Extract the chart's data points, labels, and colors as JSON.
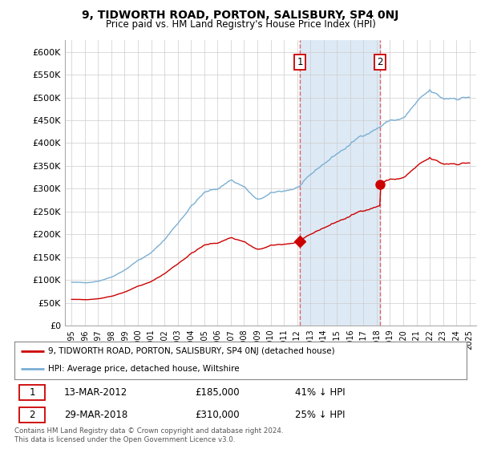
{
  "title": "9, TIDWORTH ROAD, PORTON, SALISBURY, SP4 0NJ",
  "subtitle": "Price paid vs. HM Land Registry's House Price Index (HPI)",
  "ylabel_ticks": [
    "£0",
    "£50K",
    "£100K",
    "£150K",
    "£200K",
    "£250K",
    "£300K",
    "£350K",
    "£400K",
    "£450K",
    "£500K",
    "£550K",
    "£600K"
  ],
  "ytick_vals": [
    0,
    50000,
    100000,
    150000,
    200000,
    250000,
    300000,
    350000,
    400000,
    450000,
    500000,
    550000,
    600000
  ],
  "hpi_color": "#7bafd4",
  "price_color": "#cc0000",
  "shade_color": "#ddeaf5",
  "grid_color": "#cccccc",
  "plot_bg": "#ffffff",
  "marker1_x": 2012.21,
  "marker1_y": 185000,
  "marker1_label": "13-MAR-2012",
  "marker1_price": "£185,000",
  "marker1_hpi": "41% ↓ HPI",
  "marker2_x": 2018.24,
  "marker2_y": 310000,
  "marker2_label": "29-MAR-2018",
  "marker2_price": "£310,000",
  "marker2_hpi": "25% ↓ HPI",
  "legend_line1": "9, TIDWORTH ROAD, PORTON, SALISBURY, SP4 0NJ (detached house)",
  "legend_line2": "HPI: Average price, detached house, Wiltshire",
  "footer": "Contains HM Land Registry data © Crown copyright and database right 2024.\nThis data is licensed under the Open Government Licence v3.0.",
  "xlim": [
    1994.5,
    2025.5
  ],
  "ylim": [
    0,
    625000
  ],
  "xtick_years": [
    1995,
    1996,
    1997,
    1998,
    1999,
    2000,
    2001,
    2002,
    2003,
    2004,
    2005,
    2006,
    2007,
    2008,
    2009,
    2010,
    2011,
    2012,
    2013,
    2014,
    2015,
    2016,
    2017,
    2018,
    2019,
    2020,
    2021,
    2022,
    2023,
    2024,
    2025
  ]
}
